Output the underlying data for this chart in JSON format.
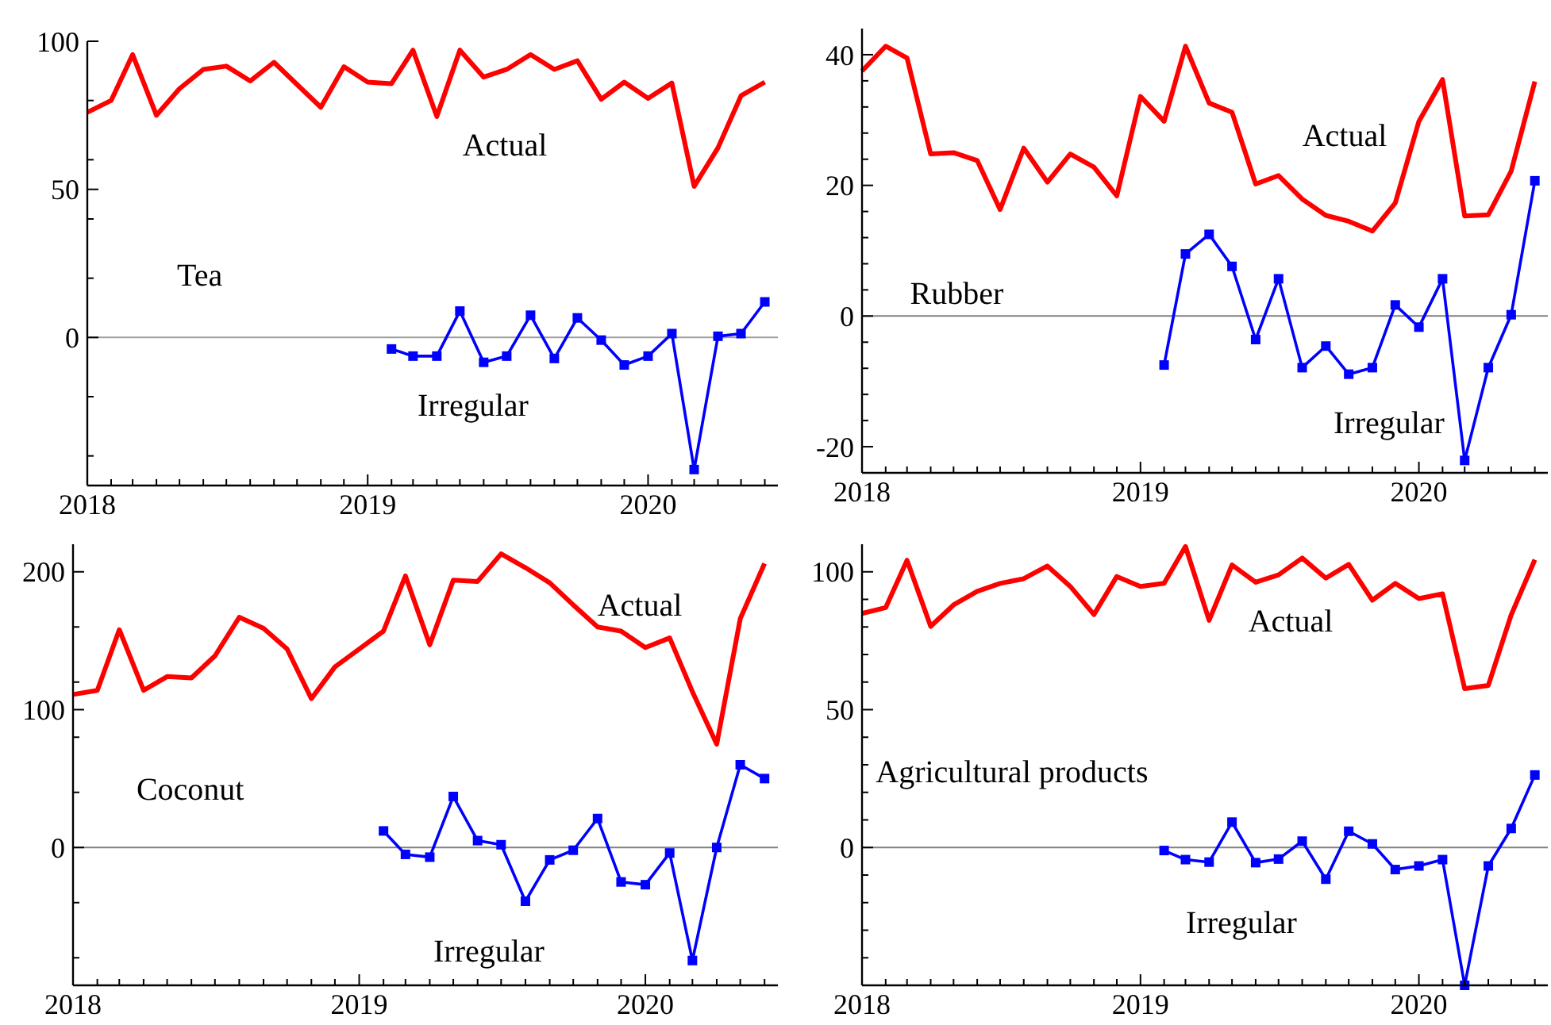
{
  "chart_data": [
    {
      "type": "line",
      "title": "Tea",
      "x": [
        "2018-01",
        "2018-02",
        "2018-03",
        "2018-04",
        "2018-05",
        "2018-06",
        "2018-07",
        "2018-08",
        "2018-09",
        "2018-10",
        "2018-11",
        "2018-12",
        "2019-01",
        "2019-02",
        "2019-03",
        "2019-04",
        "2019-05",
        "2019-06",
        "2019-07",
        "2019-08",
        "2019-09",
        "2019-10",
        "2019-11",
        "2019-12",
        "2020-01",
        "2020-02",
        "2020-03",
        "2020-04",
        "2020-05",
        "2020-06"
      ],
      "series": [
        {
          "name": "Actual",
          "color": "#ff0000",
          "marker": "none",
          "values": [
            76,
            80,
            95.5,
            75,
            84,
            90.5,
            91.6,
            86.6,
            92.9,
            85.4,
            77.7,
            91.4,
            86.2,
            85.7,
            97,
            74.6,
            97,
            87.9,
            90.5,
            95.5,
            90.5,
            93.4,
            80.4,
            86.2,
            80.7,
            85.9,
            51,
            64,
            81.6,
            86.2
          ]
        },
        {
          "name": "Irregular",
          "color": "#0000ff",
          "marker": "square",
          "values": [
            null,
            null,
            null,
            null,
            null,
            null,
            null,
            null,
            null,
            null,
            null,
            null,
            null,
            -3.9,
            -6.3,
            -6.3,
            8.9,
            -8.4,
            -6.3,
            7.5,
            -7.1,
            6.6,
            -0.9,
            -9.3,
            -6.3,
            1.3,
            -44.6,
            0.4,
            1.3,
            12
          ]
        }
      ],
      "xlim": [
        "2018-01",
        "2020-06-18"
      ],
      "xticks": [
        "2018",
        {
          "value": "2018-02",
          "label": null
        },
        {
          "value": "2018-03",
          "label": null
        },
        {
          "value": "2018-04",
          "label": null
        },
        {
          "value": "2018-05",
          "label": null
        },
        {
          "value": "2018-06",
          "label": null
        },
        {
          "value": "2018-07",
          "label": null
        },
        {
          "value": "2018-08",
          "label": null
        },
        {
          "value": "2018-09",
          "label": null
        },
        {
          "value": "2018-10",
          "label": null
        },
        {
          "value": "2018-11",
          "label": null
        },
        {
          "value": "2018-12",
          "label": null
        },
        "2019",
        {
          "value": "2019-02",
          "label": null
        },
        {
          "value": "2019-03",
          "label": null
        },
        {
          "value": "2019-04",
          "label": null
        },
        {
          "value": "2019-05",
          "label": null
        },
        {
          "value": "2019-06",
          "label": null
        },
        {
          "value": "2019-07",
          "label": null
        },
        {
          "value": "2019-08",
          "label": null
        },
        {
          "value": "2019-09",
          "label": null
        },
        {
          "value": "2019-10",
          "label": null
        },
        {
          "value": "2019-11",
          "label": null
        },
        {
          "value": "2019-12",
          "label": null
        },
        "2020",
        {
          "value": "2020-02",
          "label": null
        },
        {
          "value": "2020-03",
          "label": null
        },
        {
          "value": "2020-04",
          "label": null
        },
        {
          "value": "2020-05",
          "label": null
        },
        {
          "value": "2020-06",
          "label": null
        }
      ],
      "ylim": [
        -50,
        100
      ],
      "yticks": [
        {
          "value": -40,
          "label": null
        },
        {
          "value": -20,
          "label": null
        },
        0,
        {
          "value": 20,
          "label": null
        },
        {
          "value": 40,
          "label": null
        },
        50,
        {
          "value": 60,
          "label": null
        },
        {
          "value": 80,
          "label": null
        },
        100
      ],
      "ref_lines": [
        {
          "axis": "y",
          "value": 0,
          "color": "#a0a0a0"
        }
      ],
      "grid": false
    },
    {
      "type": "line",
      "title": "Rubber",
      "x": [
        "2018-01",
        "2018-02",
        "2018-03",
        "2018-04",
        "2018-05",
        "2018-06",
        "2018-07",
        "2018-08",
        "2018-09",
        "2018-10",
        "2018-11",
        "2018-12",
        "2019-01",
        "2019-02",
        "2019-03",
        "2019-04",
        "2019-05",
        "2019-06",
        "2019-07",
        "2019-08",
        "2019-09",
        "2019-10",
        "2019-11",
        "2019-12",
        "2020-01",
        "2020-02",
        "2020-03",
        "2020-04",
        "2020-05",
        "2020-06"
      ],
      "series": [
        {
          "name": "Actual",
          "color": "#ff0000",
          "marker": "none",
          "values": [
            37.5,
            41.3,
            39.5,
            24.8,
            25,
            23.8,
            16.3,
            25.7,
            20.5,
            24.8,
            22.8,
            18.4,
            33.6,
            29.8,
            41.3,
            32.6,
            31.2,
            20.2,
            21.5,
            17.9,
            15.4,
            14.5,
            13,
            17.3,
            29.8,
            36.2,
            15.3,
            15.5,
            22.2,
            35.9
          ]
        },
        {
          "name": "Irregular",
          "color": "#0000ff",
          "marker": "square",
          "values": [
            null,
            null,
            null,
            null,
            null,
            null,
            null,
            null,
            null,
            null,
            null,
            null,
            null,
            -7.5,
            9.5,
            12.5,
            7.6,
            -3.6,
            5.7,
            -7.9,
            -4.6,
            -8.9,
            -7.9,
            1.7,
            -1.7,
            5.7,
            -22.1,
            -7.9,
            0.2,
            20.7
          ]
        }
      ],
      "xlim": [
        "2018-01",
        "2020-06-18"
      ],
      "xticks": [
        "2018",
        {
          "value": "2018-02",
          "label": null
        },
        {
          "value": "2018-03",
          "label": null
        },
        {
          "value": "2018-04",
          "label": null
        },
        {
          "value": "2018-05",
          "label": null
        },
        {
          "value": "2018-06",
          "label": null
        },
        {
          "value": "2018-07",
          "label": null
        },
        {
          "value": "2018-08",
          "label": null
        },
        {
          "value": "2018-09",
          "label": null
        },
        {
          "value": "2018-10",
          "label": null
        },
        {
          "value": "2018-11",
          "label": null
        },
        {
          "value": "2018-12",
          "label": null
        },
        "2019",
        {
          "value": "2019-02",
          "label": null
        },
        {
          "value": "2019-03",
          "label": null
        },
        {
          "value": "2019-04",
          "label": null
        },
        {
          "value": "2019-05",
          "label": null
        },
        {
          "value": "2019-06",
          "label": null
        },
        {
          "value": "2019-07",
          "label": null
        },
        {
          "value": "2019-08",
          "label": null
        },
        {
          "value": "2019-09",
          "label": null
        },
        {
          "value": "2019-10",
          "label": null
        },
        {
          "value": "2019-11",
          "label": null
        },
        {
          "value": "2019-12",
          "label": null
        },
        "2020",
        {
          "value": "2020-02",
          "label": null
        },
        {
          "value": "2020-03",
          "label": null
        },
        {
          "value": "2020-04",
          "label": null
        },
        {
          "value": "2020-05",
          "label": null
        },
        {
          "value": "2020-06",
          "label": null
        }
      ],
      "ylim": [
        -24,
        44
      ],
      "yticks": [
        -20,
        {
          "value": -16,
          "label": null
        },
        {
          "value": -12,
          "label": null
        },
        {
          "value": -8,
          "label": null
        },
        {
          "value": -4,
          "label": null
        },
        0,
        {
          "value": 4,
          "label": null
        },
        {
          "value": 8,
          "label": null
        },
        {
          "value": 12,
          "label": null
        },
        {
          "value": 16,
          "label": null
        },
        20,
        {
          "value": 24,
          "label": null
        },
        {
          "value": 28,
          "label": null
        },
        {
          "value": 32,
          "label": null
        },
        {
          "value": 36,
          "label": null
        },
        40
      ],
      "ref_lines": [
        {
          "axis": "y",
          "value": 0,
          "color": "#808080"
        }
      ],
      "grid": false
    },
    {
      "type": "line",
      "title": "Coconut",
      "x": [
        "2018-01",
        "2018-02",
        "2018-03",
        "2018-04",
        "2018-05",
        "2018-06",
        "2018-07",
        "2018-08",
        "2018-09",
        "2018-10",
        "2018-11",
        "2018-12",
        "2019-01",
        "2019-02",
        "2019-03",
        "2019-04",
        "2019-05",
        "2019-06",
        "2019-07",
        "2019-08",
        "2019-09",
        "2019-10",
        "2019-11",
        "2019-12",
        "2020-01",
        "2020-02",
        "2020-03",
        "2020-04",
        "2020-05",
        "2020-06"
      ],
      "series": [
        {
          "name": "Actual",
          "color": "#ff0000",
          "marker": "none",
          "values": [
            111,
            114,
            158,
            114,
            124,
            123,
            139,
            167,
            159,
            144,
            108,
            131,
            144,
            157,
            197,
            147,
            194,
            193,
            213,
            203,
            192,
            176,
            160,
            157,
            145,
            152,
            113,
            75,
            166,
            206
          ]
        },
        {
          "name": "Irregular",
          "color": "#0000ff",
          "marker": "square",
          "values": [
            null,
            null,
            null,
            null,
            null,
            null,
            null,
            null,
            null,
            null,
            null,
            null,
            null,
            12,
            -5,
            -7,
            37,
            5,
            2,
            -39,
            -9,
            -2,
            21,
            -25,
            -27,
            -4,
            -82,
            0,
            60,
            50
          ]
        }
      ],
      "xlim": [
        "2018-01",
        "2020-06-18"
      ],
      "xticks": [
        "2018",
        {
          "value": "2018-02",
          "label": null
        },
        {
          "value": "2018-03",
          "label": null
        },
        {
          "value": "2018-04",
          "label": null
        },
        {
          "value": "2018-05",
          "label": null
        },
        {
          "value": "2018-06",
          "label": null
        },
        {
          "value": "2018-07",
          "label": null
        },
        {
          "value": "2018-08",
          "label": null
        },
        {
          "value": "2018-09",
          "label": null
        },
        {
          "value": "2018-10",
          "label": null
        },
        {
          "value": "2018-11",
          "label": null
        },
        {
          "value": "2018-12",
          "label": null
        },
        "2019",
        {
          "value": "2019-02",
          "label": null
        },
        {
          "value": "2019-03",
          "label": null
        },
        {
          "value": "2019-04",
          "label": null
        },
        {
          "value": "2019-05",
          "label": null
        },
        {
          "value": "2019-06",
          "label": null
        },
        {
          "value": "2019-07",
          "label": null
        },
        {
          "value": "2019-08",
          "label": null
        },
        {
          "value": "2019-09",
          "label": null
        },
        {
          "value": "2019-10",
          "label": null
        },
        {
          "value": "2019-11",
          "label": null
        },
        {
          "value": "2019-12",
          "label": null
        },
        "2020",
        {
          "value": "2020-02",
          "label": null
        },
        {
          "value": "2020-03",
          "label": null
        },
        {
          "value": "2020-04",
          "label": null
        },
        {
          "value": "2020-05",
          "label": null
        },
        {
          "value": "2020-06",
          "label": null
        }
      ],
      "ylim": [
        -100,
        220
      ],
      "yticks": [
        {
          "value": -80,
          "label": null
        },
        {
          "value": -40,
          "label": null
        },
        0,
        {
          "value": 40,
          "label": null
        },
        {
          "value": 80,
          "label": null
        },
        100,
        {
          "value": 120,
          "label": null
        },
        {
          "value": 160,
          "label": null
        },
        200
      ],
      "ref_lines": [
        {
          "axis": "y",
          "value": 0,
          "color": "#808080"
        }
      ],
      "grid": false
    },
    {
      "type": "line",
      "title": "Agricultural products",
      "x": [
        "2018-01",
        "2018-02",
        "2018-03",
        "2018-04",
        "2018-05",
        "2018-06",
        "2018-07",
        "2018-08",
        "2018-09",
        "2018-10",
        "2018-11",
        "2018-12",
        "2019-01",
        "2019-02",
        "2019-03",
        "2019-04",
        "2019-05",
        "2019-06",
        "2019-07",
        "2019-08",
        "2019-09",
        "2019-10",
        "2019-11",
        "2019-12",
        "2020-01",
        "2020-02",
        "2020-03",
        "2020-04",
        "2020-05",
        "2020-06"
      ],
      "series": [
        {
          "name": "Actual",
          "color": "#ff0000",
          "marker": "none",
          "values": [
            84.9,
            87,
            104.2,
            80.2,
            88,
            92.9,
            95.8,
            97.5,
            102.1,
            94.7,
            84.5,
            98.3,
            94.7,
            95.8,
            109.2,
            82.4,
            102.5,
            96.2,
            98.9,
            105,
            97.7,
            102.7,
            89.7,
            95.8,
            90.3,
            92,
            57.6,
            58.8,
            84.4,
            104.4
          ]
        },
        {
          "name": "Irregular",
          "color": "#0000ff",
          "marker": "square",
          "values": [
            null,
            null,
            null,
            null,
            null,
            null,
            null,
            null,
            null,
            null,
            null,
            null,
            null,
            -1.1,
            -4.4,
            -5.3,
            9.2,
            -5.5,
            -4.2,
            2.3,
            -11.5,
            5.9,
            1.3,
            -8,
            -6.7,
            -4.4,
            -50,
            -6.7,
            6.9,
            26.3
          ]
        }
      ],
      "xlim": [
        "2018-01",
        "2020-06-18"
      ],
      "xticks": [
        "2018",
        {
          "value": "2018-02",
          "label": null
        },
        {
          "value": "2018-03",
          "label": null
        },
        {
          "value": "2018-04",
          "label": null
        },
        {
          "value": "2018-05",
          "label": null
        },
        {
          "value": "2018-06",
          "label": null
        },
        {
          "value": "2018-07",
          "label": null
        },
        {
          "value": "2018-08",
          "label": null
        },
        {
          "value": "2018-09",
          "label": null
        },
        {
          "value": "2018-10",
          "label": null
        },
        {
          "value": "2018-11",
          "label": null
        },
        {
          "value": "2018-12",
          "label": null
        },
        "2019",
        {
          "value": "2019-02",
          "label": null
        },
        {
          "value": "2019-03",
          "label": null
        },
        {
          "value": "2019-04",
          "label": null
        },
        {
          "value": "2019-05",
          "label": null
        },
        {
          "value": "2019-06",
          "label": null
        },
        {
          "value": "2019-07",
          "label": null
        },
        {
          "value": "2019-08",
          "label": null
        },
        {
          "value": "2019-09",
          "label": null
        },
        {
          "value": "2019-10",
          "label": null
        },
        {
          "value": "2019-11",
          "label": null
        },
        {
          "value": "2019-12",
          "label": null
        },
        "2020",
        {
          "value": "2020-02",
          "label": null
        },
        {
          "value": "2020-03",
          "label": null
        },
        {
          "value": "2020-04",
          "label": null
        },
        {
          "value": "2020-05",
          "label": null
        },
        {
          "value": "2020-06",
          "label": null
        }
      ],
      "ylim": [
        -50,
        110
      ],
      "yticks": [
        {
          "value": -40,
          "label": null
        },
        {
          "value": -30,
          "label": null
        },
        {
          "value": -20,
          "label": null
        },
        {
          "value": -10,
          "label": null
        },
        0,
        {
          "value": 10,
          "label": null
        },
        {
          "value": 20,
          "label": null
        },
        {
          "value": 30,
          "label": null
        },
        {
          "value": 40,
          "label": null
        },
        50,
        {
          "value": 60,
          "label": null
        },
        {
          "value": 70,
          "label": null
        },
        {
          "value": 80,
          "label": null
        },
        {
          "value": 90,
          "label": null
        },
        100
      ],
      "ref_lines": [
        {
          "axis": "y",
          "value": 0,
          "color": "#808080"
        }
      ],
      "grid": false
    }
  ]
}
